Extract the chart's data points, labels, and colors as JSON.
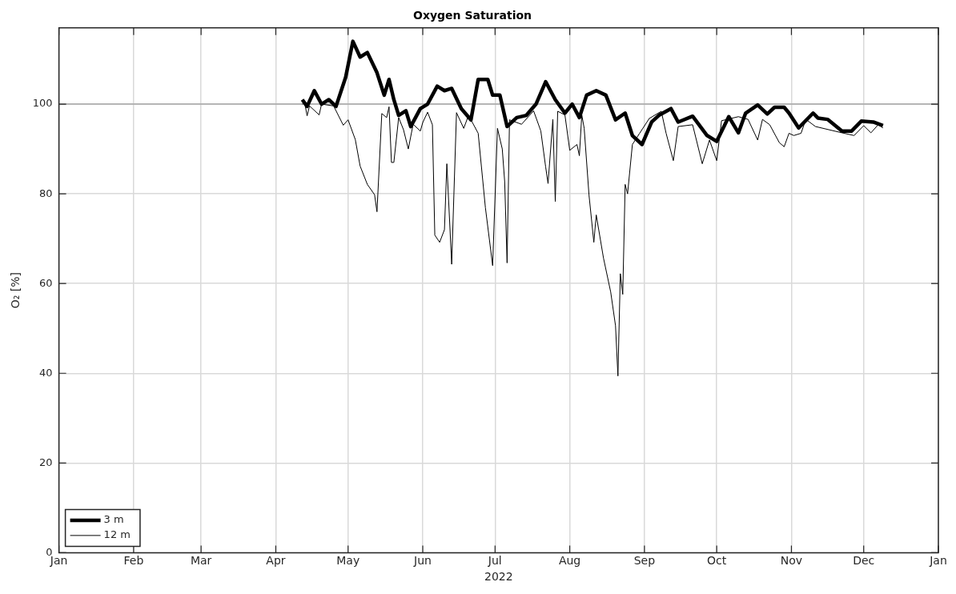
{
  "chart_data": {
    "type": "line",
    "title": "Oxygen Saturation",
    "xlabel": "2022",
    "ylabel": "O₂ [%]",
    "xlim": [
      "2022-01-01",
      "2023-01-01"
    ],
    "xticks": [
      {
        "value": "2022-01-01",
        "label": "Jan"
      },
      {
        "value": "2022-02-01",
        "label": "Feb"
      },
      {
        "value": "2022-03-01",
        "label": "Mar"
      },
      {
        "value": "2022-04-01",
        "label": "Apr"
      },
      {
        "value": "2022-05-01",
        "label": "May"
      },
      {
        "value": "2022-06-01",
        "label": "Jun"
      },
      {
        "value": "2022-07-01",
        "label": "Jul"
      },
      {
        "value": "2022-08-01",
        "label": "Aug"
      },
      {
        "value": "2022-09-01",
        "label": "Sep"
      },
      {
        "value": "2022-10-01",
        "label": "Oct"
      },
      {
        "value": "2022-11-01",
        "label": "Nov"
      },
      {
        "value": "2022-12-01",
        "label": "Dec"
      },
      {
        "value": "2023-01-01",
        "label": "Jan"
      }
    ],
    "ylim": [
      0,
      117
    ],
    "yticks": [
      0,
      20,
      40,
      60,
      80,
      100
    ],
    "grid": true,
    "ref_lines": [
      {
        "axis": "y",
        "value": 100,
        "color": "#a6a6a6"
      }
    ],
    "legend": "bottom left",
    "marker": "none",
    "line_style": "solid",
    "series": [
      {
        "name": "3 m",
        "color": "#000000",
        "x": [
          "2022-04-12",
          "2022-04-14",
          "2022-04-17",
          "2022-04-20",
          "2022-04-23",
          "2022-04-26",
          "2022-04-30",
          "2022-05-03",
          "2022-05-06",
          "2022-05-09",
          "2022-05-13",
          "2022-05-16",
          "2022-05-18",
          "2022-05-20",
          "2022-05-22",
          "2022-05-25",
          "2022-05-27",
          "2022-05-31",
          "2022-06-03",
          "2022-06-07",
          "2022-06-10",
          "2022-06-13",
          "2022-06-17",
          "2022-06-21",
          "2022-06-24",
          "2022-06-28",
          "2022-06-30",
          "2022-07-03",
          "2022-07-06",
          "2022-07-10",
          "2022-07-14",
          "2022-07-18",
          "2022-07-22",
          "2022-07-26",
          "2022-07-30",
          "2022-08-02",
          "2022-08-05",
          "2022-08-08",
          "2022-08-12",
          "2022-08-16",
          "2022-08-20",
          "2022-08-24",
          "2022-08-27",
          "2022-08-31",
          "2022-09-04",
          "2022-09-07",
          "2022-09-12",
          "2022-09-15",
          "2022-09-21",
          "2022-09-27",
          "2022-10-01",
          "2022-10-06",
          "2022-10-10",
          "2022-10-13",
          "2022-10-18",
          "2022-10-22",
          "2022-10-25",
          "2022-10-29",
          "2022-10-31",
          "2022-11-04",
          "2022-11-10",
          "2022-11-12",
          "2022-11-16",
          "2022-11-22",
          "2022-11-26",
          "2022-11-30",
          "2022-12-05",
          "2022-12-09"
        ],
        "values": [
          101,
          99.5,
          103,
          100,
          101,
          99.5,
          106,
          114,
          110.5,
          111.5,
          107,
          102,
          105.5,
          101,
          97.5,
          98.5,
          95,
          99,
          100,
          104,
          103,
          103.5,
          99,
          96.5,
          105.5,
          105.5,
          102,
          102,
          95,
          97,
          97.5,
          100,
          105,
          101,
          98,
          100,
          97,
          102,
          103,
          102,
          96.5,
          98,
          93,
          91,
          96,
          97.5,
          99,
          96,
          97.3,
          93,
          91.7,
          97.2,
          93.6,
          98,
          99.8,
          97.8,
          99.3,
          99.3,
          98,
          94.7,
          98,
          96.9,
          96.6,
          94,
          94,
          96.2,
          96,
          95.2
        ]
      },
      {
        "name": "12 m",
        "color": "#000000",
        "x": [
          "2022-04-12",
          "2022-04-13",
          "2022-04-14",
          "2022-04-15",
          "2022-04-19",
          "2022-04-20",
          "2022-04-25",
          "2022-04-29",
          "2022-05-01",
          "2022-05-04",
          "2022-05-06",
          "2022-05-09",
          "2022-05-12",
          "2022-05-13",
          "2022-05-15",
          "2022-05-17",
          "2022-05-18",
          "2022-05-19",
          "2022-05-20",
          "2022-05-22",
          "2022-05-24",
          "2022-05-26",
          "2022-05-28",
          "2022-05-31",
          "2022-06-01",
          "2022-06-03",
          "2022-06-05",
          "2022-06-06",
          "2022-06-08",
          "2022-06-10",
          "2022-06-11",
          "2022-06-13",
          "2022-06-15",
          "2022-06-18",
          "2022-06-20",
          "2022-06-24",
          "2022-06-27",
          "2022-06-30",
          "2022-07-02",
          "2022-07-04",
          "2022-07-05",
          "2022-07-06",
          "2022-07-07",
          "2022-07-12",
          "2022-07-17",
          "2022-07-20",
          "2022-07-22",
          "2022-07-23",
          "2022-07-25",
          "2022-07-26",
          "2022-07-27",
          "2022-07-30",
          "2022-08-01",
          "2022-08-04",
          "2022-08-05",
          "2022-08-06",
          "2022-08-07",
          "2022-08-09",
          "2022-08-11",
          "2022-08-12",
          "2022-08-15",
          "2022-08-18",
          "2022-08-20",
          "2022-08-21",
          "2022-08-22",
          "2022-08-23",
          "2022-08-24",
          "2022-08-25",
          "2022-08-27",
          "2022-08-30",
          "2022-09-03",
          "2022-09-08",
          "2022-09-10",
          "2022-09-13",
          "2022-09-15",
          "2022-09-21",
          "2022-09-25",
          "2022-09-28",
          "2022-10-01",
          "2022-10-03",
          "2022-10-10",
          "2022-10-14",
          "2022-10-18",
          "2022-10-20",
          "2022-10-23",
          "2022-10-27",
          "2022-10-29",
          "2022-10-31",
          "2022-11-02",
          "2022-11-05",
          "2022-11-07",
          "2022-11-11",
          "2022-11-22",
          "2022-11-27",
          "2022-12-01",
          "2022-12-04",
          "2022-12-07",
          "2022-12-09"
        ],
        "values": [
          100,
          100.2,
          97.4,
          99.6,
          97.6,
          100,
          99.6,
          95.3,
          96.5,
          92.1,
          86.2,
          82.1,
          79.8,
          76,
          97.9,
          97,
          99.4,
          87,
          87,
          97,
          94.3,
          90,
          95.5,
          94,
          95.9,
          98.2,
          95.4,
          70.8,
          69.2,
          72,
          86.7,
          64.3,
          98.1,
          94.6,
          97.5,
          93.5,
          76.9,
          64,
          94.6,
          90,
          82.7,
          64.6,
          96.5,
          95.5,
          98.5,
          94,
          86,
          82.3,
          96.6,
          78.3,
          98.4,
          97.6,
          89.7,
          91,
          88.5,
          97.6,
          94.6,
          79.7,
          69.2,
          75.3,
          65.7,
          58.1,
          50.6,
          39.4,
          62.2,
          57.6,
          82.1,
          80,
          91,
          93.5,
          96.8,
          98.4,
          93.5,
          87.4,
          95,
          95.4,
          86.7,
          92,
          87.4,
          96.3,
          97.2,
          96.6,
          92,
          96.6,
          95.4,
          91.4,
          90.5,
          93.5,
          93,
          93.5,
          96.6,
          95,
          93.6,
          93,
          95.2,
          93.6,
          95.4,
          94.7
        ]
      }
    ]
  }
}
